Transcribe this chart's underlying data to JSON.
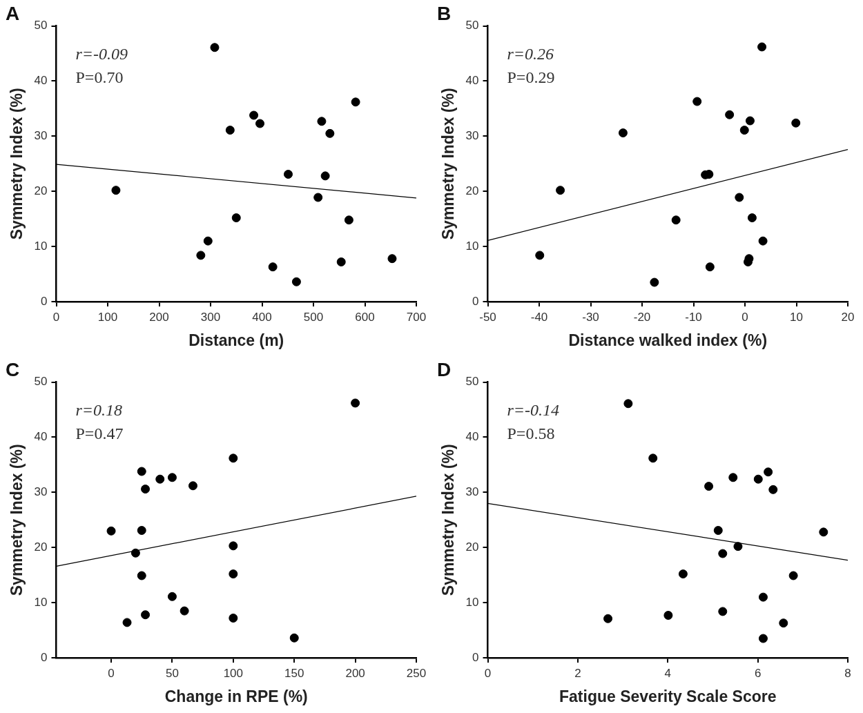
{
  "chart_data": [
    {
      "type": "scatter",
      "title": "A",
      "xlabel": "Distance (m)",
      "ylabel": "Symmetry Index (%)",
      "xlim": [
        0,
        700
      ],
      "xticks": [
        0,
        100,
        200,
        300,
        400,
        500,
        600,
        700
      ],
      "ylim": [
        0,
        50
      ],
      "yticks": [
        0,
        10,
        20,
        30,
        40,
        50
      ],
      "grid": false,
      "legend": false,
      "annotations": [
        "r=-0.09",
        "P=0.70"
      ],
      "series": [
        {
          "color": "#000000",
          "marker": "circle",
          "x": [
            116,
            308,
            338,
            384,
            396,
            281,
            295,
            350,
            421,
            467,
            451,
            516,
            532,
            523,
            509,
            582,
            569,
            554,
            653
          ],
          "values": [
            20.2,
            46.1,
            31.1,
            33.8,
            32.3,
            8.4,
            11.0,
            15.2,
            6.3,
            3.6,
            23.1,
            32.7,
            30.5,
            22.8,
            18.9,
            36.2,
            14.8,
            7.2,
            7.8
          ]
        },
        {
          "type": "line",
          "color": "#000000",
          "marker": "none",
          "x": [
            0,
            700
          ],
          "values": [
            24.9,
            18.8
          ]
        }
      ]
    },
    {
      "type": "scatter",
      "title": "B",
      "xlabel": "Distance walked index (%)",
      "ylabel": "Symmetry Index (%)",
      "xlim": [
        -50,
        20
      ],
      "xticks": [
        -50,
        -40,
        -30,
        -20,
        -10,
        0,
        10,
        20
      ],
      "ylim": [
        0,
        50
      ],
      "yticks": [
        0,
        10,
        20,
        30,
        40,
        50
      ],
      "grid": false,
      "legend": false,
      "annotations": [
        "r=0.26",
        "P=0.29"
      ],
      "series": [
        {
          "color": "#000000",
          "marker": "circle",
          "x": [
            -39.9,
            -35.9,
            -23.7,
            -17.6,
            -13.4,
            -9.3,
            -7.7,
            -7.0,
            -6.8,
            -3.0,
            -1.1,
            -0.1,
            1.0,
            0.6,
            0.8,
            1.4,
            3.5,
            3.3,
            9.9
          ],
          "values": [
            8.4,
            20.2,
            30.6,
            3.5,
            14.8,
            36.3,
            23.0,
            23.1,
            6.3,
            33.9,
            18.9,
            31.1,
            32.8,
            7.2,
            7.8,
            15.2,
            11.0,
            46.2,
            32.4
          ]
        },
        {
          "type": "line",
          "color": "#000000",
          "marker": "none",
          "x": [
            -50,
            20
          ],
          "values": [
            11.1,
            27.6
          ]
        }
      ]
    },
    {
      "type": "scatter",
      "title": "C",
      "xlabel": "Change in RPE (%)",
      "ylabel": "Symmetry Index (%)",
      "xlim": [
        -45,
        250
      ],
      "xticks": [
        0,
        50,
        100,
        150,
        200,
        250
      ],
      "ylim": [
        0,
        50
      ],
      "yticks": [
        0,
        10,
        20,
        30,
        40,
        50
      ],
      "grid": false,
      "legend": false,
      "annotations": [
        "r=0.18",
        "P=0.47"
      ],
      "series": [
        {
          "color": "#000000",
          "marker": "circle",
          "x": [
            0,
            25,
            28,
            40,
            50,
            67,
            100,
            200,
            25,
            20,
            100,
            25,
            100,
            50,
            60,
            28,
            13,
            100,
            150
          ],
          "values": [
            23.0,
            33.8,
            30.6,
            32.4,
            32.7,
            31.2,
            36.2,
            46.2,
            23.1,
            19.0,
            20.3,
            14.9,
            15.2,
            11.1,
            8.5,
            7.8,
            6.4,
            7.2,
            3.6
          ]
        },
        {
          "type": "line",
          "color": "#000000",
          "marker": "none",
          "x": [
            -45,
            250
          ],
          "values": [
            16.6,
            29.3
          ]
        }
      ]
    },
    {
      "type": "scatter",
      "title": "D",
      "xlabel": "Fatigue Severity Scale Score",
      "ylabel": "Symmetry Index (%)",
      "xlim": [
        0,
        8
      ],
      "xticks": [
        0,
        2,
        4,
        6,
        8
      ],
      "ylim": [
        0,
        50
      ],
      "yticks": [
        0,
        10,
        20,
        30,
        40,
        50
      ],
      "grid": false,
      "legend": false,
      "annotations": [
        "r=-0.14",
        "P=0.58"
      ],
      "series": [
        {
          "color": "#000000",
          "marker": "circle",
          "x": [
            3.12,
            3.67,
            4.91,
            5.45,
            6.01,
            6.23,
            6.34,
            5.12,
            7.46,
            5.56,
            5.22,
            4.34,
            6.79,
            6.12,
            5.22,
            4.01,
            2.67,
            6.57,
            6.12
          ],
          "values": [
            46.1,
            36.2,
            31.1,
            32.7,
            32.4,
            33.7,
            30.5,
            23.1,
            22.8,
            20.2,
            18.9,
            15.2,
            14.9,
            11.0,
            8.4,
            7.7,
            7.1,
            6.3,
            3.5
          ]
        },
        {
          "type": "line",
          "color": "#000000",
          "marker": "none",
          "x": [
            0,
            8
          ],
          "values": [
            28.0,
            17.7
          ]
        }
      ]
    }
  ]
}
